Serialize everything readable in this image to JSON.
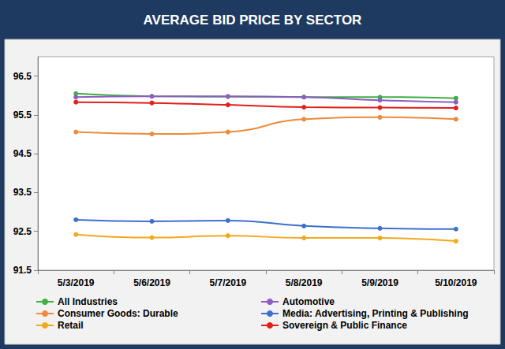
{
  "chart_data": {
    "type": "line",
    "title": "AVERAGE BID PRICE BY SECTOR",
    "categories": [
      "5/3/2019",
      "5/6/2019",
      "5/7/2019",
      "5/8/2019",
      "5/9/2019",
      "5/10/2019"
    ],
    "series": [
      {
        "name": "All Industries",
        "color": "#3cb043",
        "values": [
          96.05,
          95.98,
          95.97,
          95.96,
          95.96,
          95.93
        ]
      },
      {
        "name": "Automotive",
        "color": "#8e5cc4",
        "values": [
          95.96,
          95.98,
          95.98,
          95.96,
          95.88,
          95.83
        ]
      },
      {
        "name": "Consumer Goods: Durable",
        "color": "#ee8a3a",
        "values": [
          95.06,
          95.01,
          95.06,
          95.39,
          95.44,
          95.39
        ]
      },
      {
        "name": "Media: Advertising, Printing & Publishing",
        "color": "#3c6fcf",
        "values": [
          92.8,
          92.76,
          92.78,
          92.64,
          92.58,
          92.56
        ]
      },
      {
        "name": "Retail",
        "color": "#f2a81d",
        "values": [
          92.42,
          92.34,
          92.39,
          92.33,
          92.33,
          92.25
        ]
      },
      {
        "name": "Sovereign & Public Finance",
        "color": "#e0201b",
        "values": [
          95.83,
          95.81,
          95.76,
          95.7,
          95.69,
          95.68
        ]
      }
    ],
    "ylim": [
      91.5,
      97
    ],
    "yticks": [
      91.5,
      92.5,
      93.5,
      94.5,
      95.5,
      96.5
    ],
    "grid": false,
    "legend": "bottom",
    "marker": "circle",
    "line_style": "solid"
  }
}
